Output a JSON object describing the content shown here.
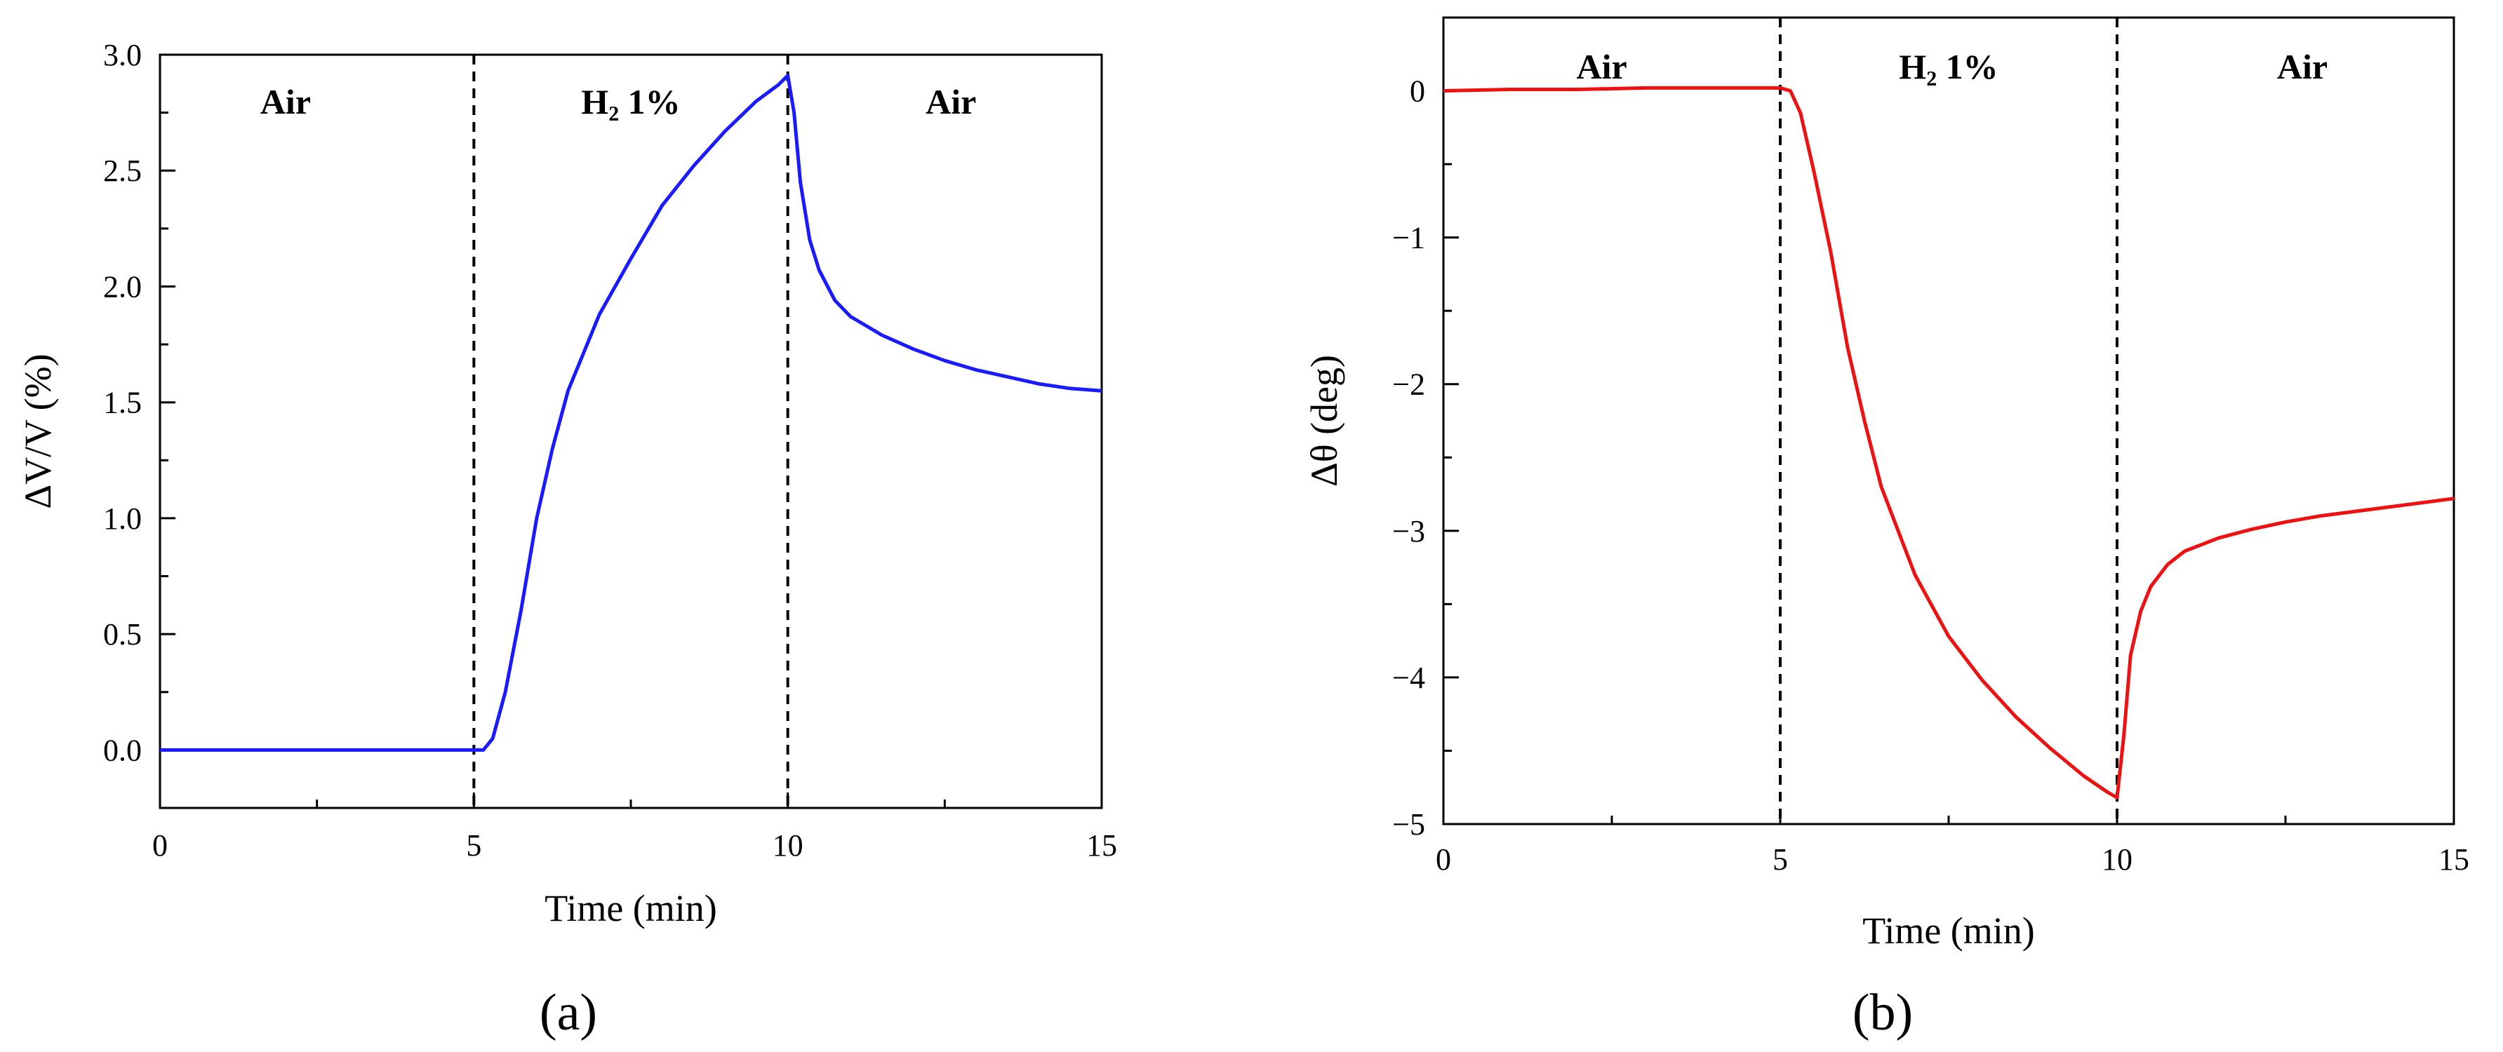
{
  "chart_data": [
    {
      "type": "line",
      "panel_label": "(a)",
      "xlabel": "Time (min)",
      "ylabel": "ΔV/V (%)",
      "xlim": [
        0,
        15
      ],
      "ylim": [
        -0.25,
        3.0
      ],
      "x_ticks": [
        0,
        5,
        10,
        15
      ],
      "y_ticks": [
        0.0,
        0.5,
        1.0,
        1.5,
        2.0,
        2.5,
        3.0
      ],
      "y_tick_labels": [
        "0.0",
        "0.5",
        "1.0",
        "1.5",
        "2.0",
        "2.5",
        "3.0"
      ],
      "color": "#1a1aff",
      "dividers": [
        5,
        10
      ],
      "regions": [
        {
          "label": "Air",
          "x": 2.0
        },
        {
          "label": "H₂ 1%",
          "x": 7.5
        },
        {
          "label": "Air",
          "x": 12.6
        }
      ],
      "series": [
        {
          "x": [
            0,
            1,
            2,
            3,
            4,
            5,
            5.15,
            5.3,
            5.5,
            5.75,
            6.0,
            6.25,
            6.5,
            7.0,
            7.5,
            8.0,
            8.5,
            9.0,
            9.5,
            9.85,
            10.0,
            10.1,
            10.2,
            10.35,
            10.5,
            10.75,
            11.0,
            11.5,
            12.0,
            12.5,
            13.0,
            13.5,
            14.0,
            14.5,
            15.0
          ],
          "y": [
            0,
            0,
            0,
            0,
            0,
            0,
            0.0,
            0.05,
            0.25,
            0.6,
            1.0,
            1.3,
            1.55,
            1.88,
            2.12,
            2.35,
            2.52,
            2.67,
            2.8,
            2.87,
            2.91,
            2.75,
            2.45,
            2.2,
            2.07,
            1.94,
            1.87,
            1.79,
            1.73,
            1.68,
            1.64,
            1.61,
            1.58,
            1.56,
            1.55
          ]
        }
      ]
    },
    {
      "type": "line",
      "panel_label": "(b)",
      "xlabel": "Time (min)",
      "ylabel": "Δθ (deg)",
      "xlim": [
        0,
        15
      ],
      "ylim": [
        -5.0,
        0.5
      ],
      "x_ticks": [
        0,
        5,
        10,
        15
      ],
      "y_ticks": [
        0,
        -1,
        -2,
        -3,
        -4,
        -5
      ],
      "y_tick_labels": [
        "0",
        "−1",
        "−2",
        "−3",
        "−4",
        "−5"
      ],
      "color": "#ee1111",
      "dividers": [
        5,
        10
      ],
      "regions": [
        {
          "label": "Air",
          "x": 2.35
        },
        {
          "label": "H₂ 1%",
          "x": 7.5
        },
        {
          "label": "Air",
          "x": 12.75
        }
      ],
      "series": [
        {
          "x": [
            0,
            1,
            2,
            3,
            4,
            5,
            5.15,
            5.3,
            5.5,
            5.75,
            6.0,
            6.25,
            6.5,
            7.0,
            7.5,
            8.0,
            8.5,
            9.0,
            9.5,
            9.85,
            10.0,
            10.1,
            10.2,
            10.35,
            10.5,
            10.75,
            11.0,
            11.5,
            12.0,
            12.5,
            13.0,
            13.5,
            14.0,
            14.5,
            15.0
          ],
          "y": [
            0,
            0.01,
            0.01,
            0.02,
            0.02,
            0.02,
            0.0,
            -0.15,
            -0.55,
            -1.1,
            -1.75,
            -2.25,
            -2.7,
            -3.3,
            -3.72,
            -4.02,
            -4.27,
            -4.48,
            -4.67,
            -4.78,
            -4.82,
            -4.4,
            -3.85,
            -3.55,
            -3.38,
            -3.23,
            -3.14,
            -3.05,
            -2.99,
            -2.94,
            -2.9,
            -2.87,
            -2.84,
            -2.81,
            -2.78
          ]
        }
      ]
    }
  ]
}
